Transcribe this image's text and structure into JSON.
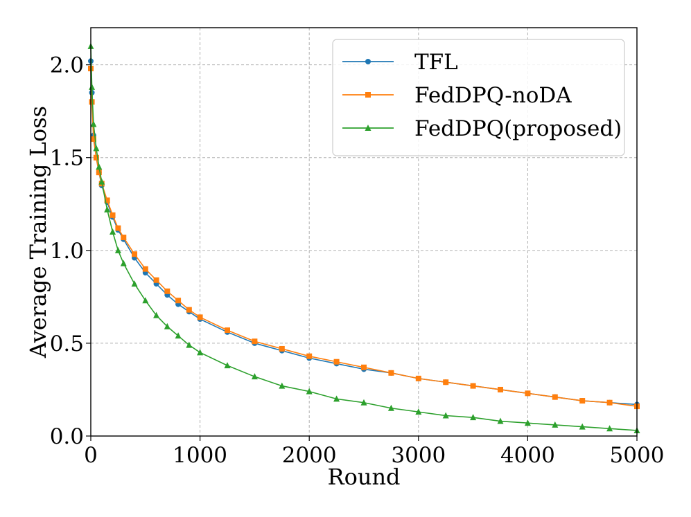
{
  "chart_data": {
    "type": "line",
    "title": "",
    "xlabel": "Round",
    "ylabel": "Average Training Loss",
    "xlim": [
      0,
      5000
    ],
    "ylim": [
      0,
      2.2
    ],
    "xticks": [
      0,
      1000,
      2000,
      3000,
      4000,
      5000
    ],
    "xtick_labels": [
      "0",
      "1000",
      "2000",
      "3000",
      "4000",
      "5000"
    ],
    "yticks": [
      0,
      0.5,
      1.0,
      1.5,
      2.0
    ],
    "ytick_labels": [
      "0.0",
      "0.5",
      "1.0",
      "1.5",
      "2.0"
    ],
    "grid": true,
    "legend_position": "top-right",
    "x": [
      0,
      10,
      25,
      50,
      75,
      100,
      150,
      200,
      250,
      300,
      400,
      500,
      600,
      700,
      800,
      900,
      1000,
      1250,
      1500,
      1750,
      2000,
      2250,
      2500,
      2750,
      3000,
      3250,
      3500,
      3750,
      4000,
      4250,
      4500,
      4750,
      5000
    ],
    "series": [
      {
        "name": "TFL",
        "color": "#1f77b4",
        "marker": "circle",
        "values": [
          2.02,
          1.85,
          1.62,
          1.5,
          1.42,
          1.35,
          1.26,
          1.18,
          1.11,
          1.06,
          0.96,
          0.88,
          0.82,
          0.76,
          0.71,
          0.67,
          0.63,
          0.56,
          0.5,
          0.46,
          0.42,
          0.39,
          0.36,
          0.34,
          0.31,
          0.29,
          0.27,
          0.25,
          0.23,
          0.21,
          0.19,
          0.18,
          0.17
        ]
      },
      {
        "name": "FedDPQ-noDA",
        "color": "#ff7f0e",
        "marker": "square",
        "values": [
          1.98,
          1.8,
          1.6,
          1.5,
          1.42,
          1.36,
          1.27,
          1.19,
          1.12,
          1.07,
          0.98,
          0.9,
          0.84,
          0.78,
          0.73,
          0.68,
          0.64,
          0.57,
          0.51,
          0.47,
          0.43,
          0.4,
          0.37,
          0.34,
          0.31,
          0.29,
          0.27,
          0.25,
          0.23,
          0.21,
          0.19,
          0.18,
          0.16
        ]
      },
      {
        "name": "FedDPQ(proposed)",
        "color": "#2ca02c",
        "marker": "triangle",
        "values": [
          2.1,
          1.88,
          1.68,
          1.55,
          1.45,
          1.37,
          1.22,
          1.1,
          1.0,
          0.93,
          0.82,
          0.73,
          0.65,
          0.59,
          0.54,
          0.49,
          0.45,
          0.38,
          0.32,
          0.27,
          0.24,
          0.2,
          0.18,
          0.15,
          0.13,
          0.11,
          0.1,
          0.08,
          0.07,
          0.06,
          0.05,
          0.04,
          0.03
        ]
      }
    ]
  }
}
